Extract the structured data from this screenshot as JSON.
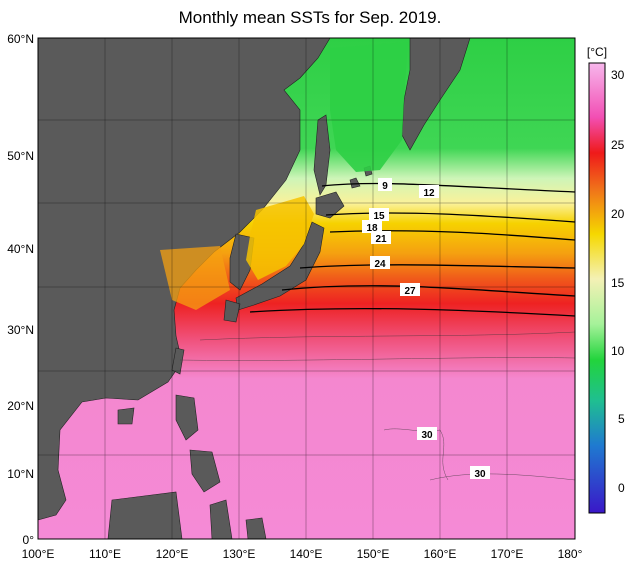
{
  "title": "Monthly mean SSTs for Sep. 2019.",
  "colorbar": {
    "unit_label": "[°C]",
    "ticks": [
      "30",
      "25",
      "20",
      "15",
      "10",
      "5",
      "0"
    ],
    "colors_top_to_bottom": [
      "#f7b7ec",
      "#f24fb4",
      "#ef1a1a",
      "#f0721a",
      "#f5d800",
      "#f4f1b5",
      "#a6f29a",
      "#22d43c",
      "#1fbf90",
      "#1f7ad0",
      "#3a17c8"
    ]
  },
  "axes": {
    "lat_labels": [
      "60°N",
      "50°N",
      "40°N",
      "30°N",
      "20°N",
      "10°N",
      "0°"
    ],
    "lon_labels": [
      "100°E",
      "110°E",
      "120°E",
      "130°E",
      "140°E",
      "150°E",
      "160°E",
      "170°E",
      "180°"
    ]
  },
  "contour_labels": [
    "9",
    "12",
    "15",
    "18",
    "21",
    "24",
    "27",
    "30",
    "30"
  ],
  "colors": {
    "land": "#5a5a5a",
    "frame": "#000000",
    "grid": "#000000"
  }
}
